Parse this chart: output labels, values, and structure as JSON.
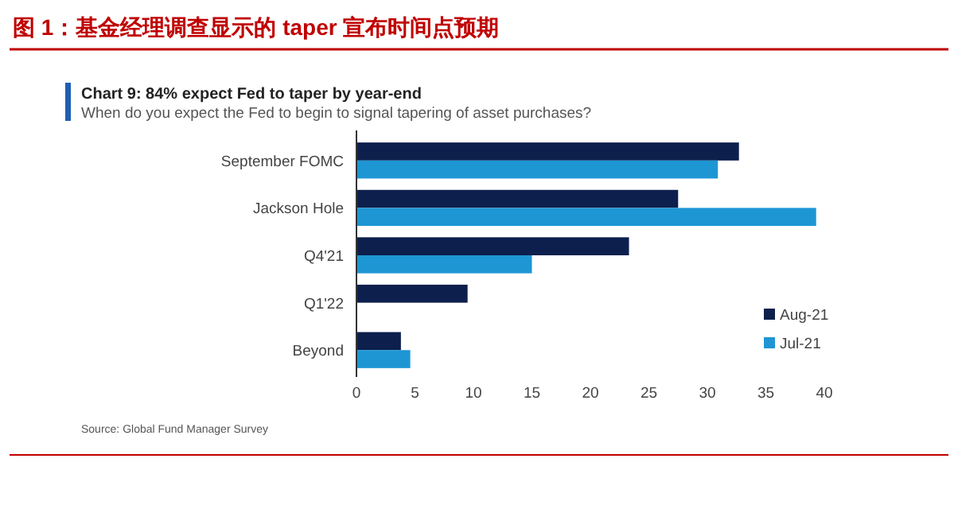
{
  "chart_data": {
    "type": "bar",
    "orientation": "horizontal",
    "title": "图 1：基金经理调查显示的 taper 宣布时间点预期",
    "subtitle": "Chart 9: 84% expect Fed to taper by year-end",
    "annotations": [
      "When do you expect the Fed to begin to signal tapering of asset purchases?",
      "Source: Global Fund Manager Survey"
    ],
    "categories": [
      "September FOMC",
      "Jackson Hole",
      "Q4'21",
      "Q1'22",
      "Beyond"
    ],
    "series": [
      {
        "name": "Aug-21",
        "color": "#0d1f4d",
        "values": [
          32.7,
          27.5,
          23.3,
          9.5,
          3.8
        ]
      },
      {
        "name": "Jul-21",
        "color": "#1e96d4",
        "values": [
          30.9,
          39.3,
          15.0,
          null,
          4.6
        ]
      }
    ],
    "xlim": [
      0,
      40
    ],
    "xticks": [
      0,
      5,
      10,
      15,
      20,
      25,
      30,
      35,
      40
    ],
    "grid": false,
    "legend": "bottom right"
  }
}
